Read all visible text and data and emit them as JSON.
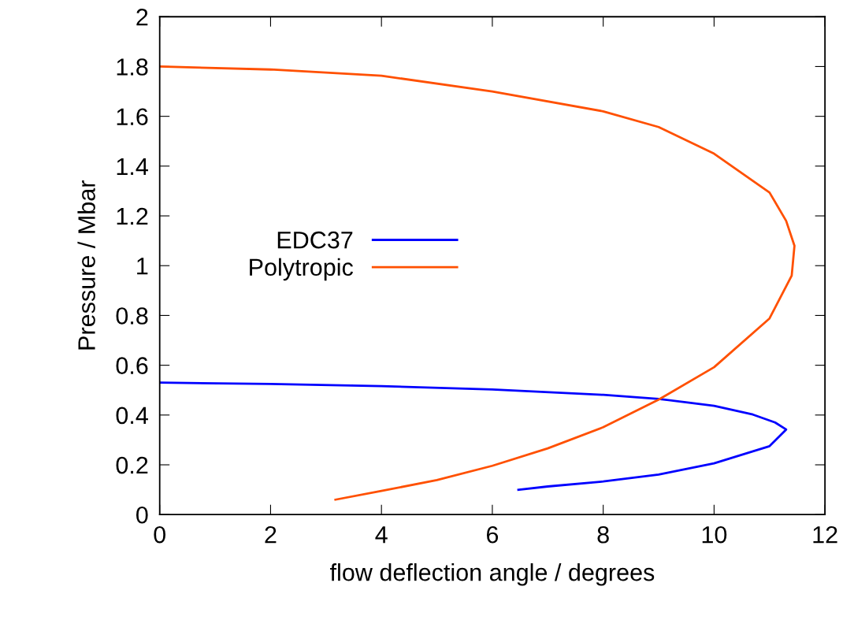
{
  "chart_data": {
    "type": "line",
    "xlabel": "flow deflection angle / degrees",
    "ylabel": "Pressure / Mbar",
    "xlim": [
      0,
      12
    ],
    "ylim": [
      0,
      2
    ],
    "xticks": [
      0,
      2,
      4,
      6,
      8,
      10,
      12
    ],
    "yticks": [
      0,
      0.2,
      0.4,
      0.6,
      0.8,
      1,
      1.2,
      1.4,
      1.6,
      1.8,
      2
    ],
    "grid": false,
    "legend": "center left",
    "marker": "none",
    "line_style": "solid",
    "series": [
      {
        "name": "EDC37",
        "color": "#0000ff",
        "x": [
          0,
          2,
          4,
          6,
          8,
          9,
          10,
          10.7,
          11.1,
          11.3,
          11,
          10,
          9,
          8,
          7,
          6.47
        ],
        "values": [
          0.53,
          0.525,
          0.516,
          0.503,
          0.481,
          0.465,
          0.437,
          0.402,
          0.37,
          0.342,
          0.275,
          0.206,
          0.161,
          0.133,
          0.113,
          0.1
        ]
      },
      {
        "name": "Polytropic",
        "color": "#ff5000",
        "x": [
          0,
          2,
          4,
          6,
          8,
          9,
          10,
          11,
          11.3,
          11.45,
          11.4,
          11,
          10,
          9,
          8,
          7,
          6,
          5,
          4,
          3.17
        ],
        "values": [
          1.8,
          1.788,
          1.763,
          1.7,
          1.62,
          1.557,
          1.45,
          1.294,
          1.18,
          1.08,
          0.96,
          0.788,
          0.592,
          0.462,
          0.351,
          0.266,
          0.196,
          0.139,
          0.095,
          0.06
        ]
      }
    ]
  }
}
